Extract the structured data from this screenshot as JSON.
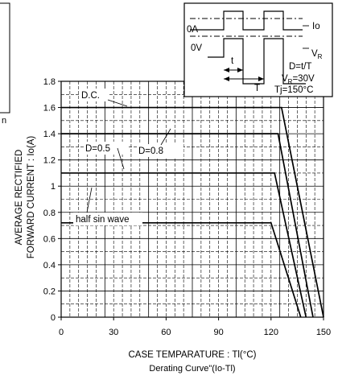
{
  "chart_data": {
    "type": "line",
    "title": "",
    "xlabel": "CASE TEMPARATURE : Tl(°C)",
    "ylabel_line1": "AVERAGE RECTIFIED",
    "ylabel_line2": "FORWARD CURRENT : Io(A)",
    "caption": "Derating Curve\"(Io-Tl)",
    "xlim": [
      0,
      150
    ],
    "ylim": [
      0,
      1.8
    ],
    "x_ticks": [
      "0",
      "30",
      "60",
      "90",
      "120",
      "150"
    ],
    "y_ticks": [
      "0",
      "0.2",
      "0.4",
      "0.6",
      "0.8",
      "1",
      "1.2",
      "1.4",
      "1.6",
      "1.8"
    ],
    "grid": true,
    "series": [
      {
        "name": "D.C.",
        "x": [
          0,
          126,
          150
        ],
        "y": [
          1.6,
          1.6,
          0
        ]
      },
      {
        "name": "D=0.8",
        "x": [
          0,
          124,
          144
        ],
        "y": [
          1.4,
          1.4,
          0
        ]
      },
      {
        "name": "D=0.5",
        "x": [
          0,
          122,
          140
        ],
        "y": [
          1.1,
          1.1,
          0
        ]
      },
      {
        "name": "half sin wave",
        "x": [
          0,
          120,
          137
        ],
        "y": [
          0.72,
          0.72,
          0
        ]
      }
    ],
    "inset": {
      "labels": {
        "zero_a": "0A",
        "zero_v": "0V",
        "io": "Io",
        "vr": "V",
        "vr_sub": "R",
        "t": "t",
        "T": "T",
        "duty": "D=t/T",
        "vr_val_prefix": "V",
        "vr_val_sub": "R",
        "vr_val": "=30V",
        "tj": "Tj=150°C"
      }
    },
    "left_fragment": "n"
  }
}
